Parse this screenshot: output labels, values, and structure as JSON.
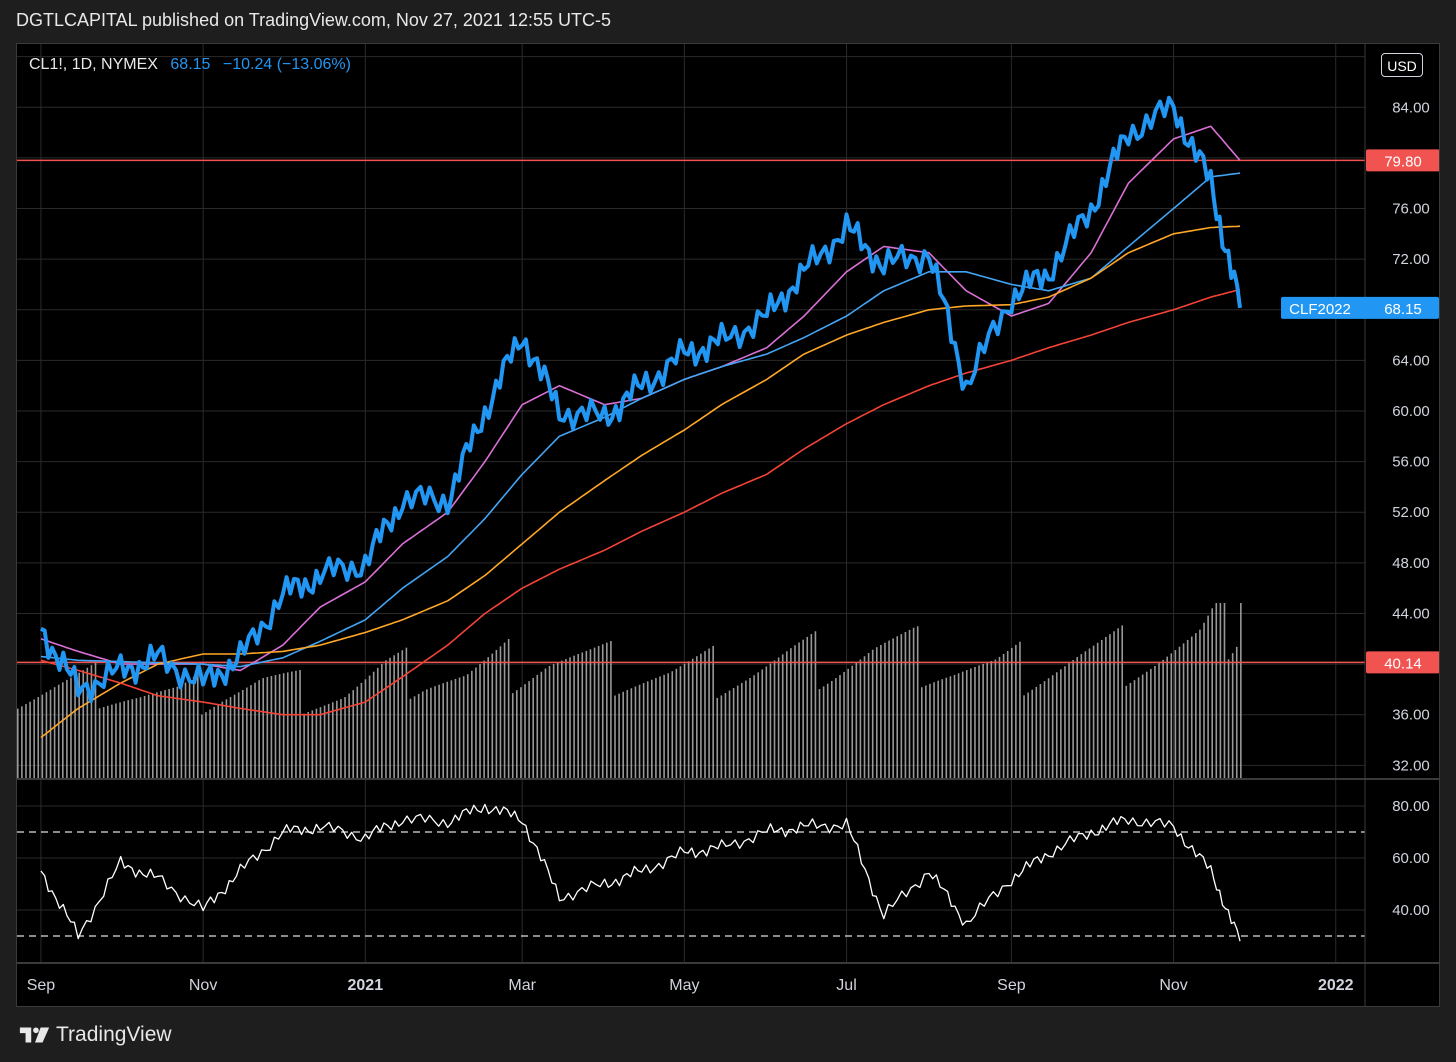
{
  "header": {
    "text": "DGTLCAPITAL published on TradingView.com, Nov 27, 2021 12:55 UTC-5"
  },
  "legend": {
    "symbol": "CL1!, 1D, NYMEX",
    "last": "68.15",
    "change": "−10.24 (−13.06%)"
  },
  "toolbar": {
    "currency_label": "USD"
  },
  "footer": {
    "brand": "TradingView",
    "logo_icon": "tradingview-logo-icon"
  },
  "colors": {
    "price": "#2196f3",
    "ma_fast": "#da70d6",
    "ma_mid": "#42a5f5",
    "ma_slow": "#ffa726",
    "ma_long": "#f44336",
    "hline": "#f05350",
    "volume": "#b3b3b3",
    "rsi": "#ffffff",
    "grid": "#2a2a2a",
    "axis_text": "#d1d4dc"
  },
  "chart_data": [
    {
      "type": "line",
      "name": "price-panel",
      "x_labels": [
        "Sep",
        "Nov",
        "2021",
        "Mar",
        "May",
        "Jul",
        "Sep",
        "Nov",
        "2022"
      ],
      "y_ticks": [
        32,
        36,
        40,
        44,
        48,
        52,
        56,
        60,
        64,
        68,
        72,
        76,
        80,
        84,
        88
      ],
      "y_tick_labels": [
        "32.00",
        "36.00",
        "",
        "44.00",
        "48.00",
        "52.00",
        "56.00",
        "60.00",
        "64.00",
        "",
        "72.00",
        "76.00",
        "",
        "84.00",
        ""
      ],
      "ylim": [
        31,
        89
      ],
      "x_dates": [
        "2020-09-01",
        "2020-09-15",
        "2020-10-01",
        "2020-10-15",
        "2020-11-01",
        "2020-11-15",
        "2020-12-01",
        "2020-12-15",
        "2021-01-01",
        "2021-01-15",
        "2021-02-01",
        "2021-02-15",
        "2021-03-01",
        "2021-03-15",
        "2021-04-01",
        "2021-04-15",
        "2021-05-01",
        "2021-05-15",
        "2021-06-01",
        "2021-06-15",
        "2021-07-01",
        "2021-07-15",
        "2021-08-01",
        "2021-08-15",
        "2021-09-01",
        "2021-09-15",
        "2021-10-01",
        "2021-10-15",
        "2021-11-01",
        "2021-11-15",
        "2021-11-26"
      ],
      "series": [
        {
          "role": "price",
          "values": [
            42.8,
            38.0,
            39.5,
            40.5,
            38.5,
            40.5,
            45.5,
            47.0,
            48.0,
            53.0,
            53.0,
            60.0,
            66.0,
            60.0,
            59.5,
            62.0,
            64.5,
            65.5,
            67.5,
            71.0,
            74.5,
            71.5,
            72.5,
            62.0,
            69.0,
            71.0,
            76.0,
            82.0,
            84.0,
            78.0,
            68.15
          ]
        },
        {
          "role": "ma_fast",
          "values": [
            42.0,
            41.0,
            40.0,
            40.0,
            40.0,
            39.5,
            41.5,
            44.5,
            46.5,
            49.5,
            52.0,
            56.0,
            60.5,
            62.0,
            60.5,
            61.0,
            62.5,
            63.5,
            65.0,
            67.5,
            71.0,
            73.0,
            72.5,
            69.5,
            67.5,
            68.5,
            72.5,
            78.0,
            81.5,
            82.5,
            79.8
          ]
        },
        {
          "role": "ma_mid",
          "values": [
            40.6,
            40.3,
            40.2,
            40.1,
            40.0,
            39.8,
            40.5,
            41.8,
            43.5,
            46.0,
            48.5,
            51.5,
            55.0,
            58.0,
            59.5,
            61.0,
            62.5,
            63.5,
            64.5,
            65.8,
            67.5,
            69.5,
            71.0,
            71.0,
            70.0,
            69.5,
            70.5,
            73.0,
            76.0,
            78.5,
            78.8
          ]
        },
        {
          "role": "ma_slow",
          "values": [
            34.2,
            36.5,
            38.5,
            40.0,
            40.8,
            40.8,
            41.0,
            41.5,
            42.5,
            43.5,
            45.0,
            47.0,
            49.5,
            52.0,
            54.5,
            56.5,
            58.5,
            60.5,
            62.5,
            64.5,
            66.0,
            67.0,
            68.0,
            68.3,
            68.4,
            69.0,
            70.5,
            72.5,
            74.0,
            74.5,
            74.6
          ]
        },
        {
          "role": "ma_long",
          "values": [
            40.3,
            39.5,
            38.5,
            37.5,
            37.0,
            36.5,
            36.0,
            36.0,
            37.0,
            39.0,
            41.5,
            44.0,
            46.0,
            47.5,
            49.0,
            50.5,
            52.0,
            53.5,
            55.0,
            57.0,
            59.0,
            60.5,
            62.0,
            63.0,
            64.0,
            65.0,
            66.0,
            67.0,
            68.0,
            69.0,
            69.6
          ]
        }
      ],
      "hlines": [
        {
          "value": 79.8,
          "label": "79.80"
        },
        {
          "value": 40.14,
          "label": "40.14"
        }
      ],
      "last_price_label": {
        "symbol": "CLF2022",
        "value": "68.15"
      }
    },
    {
      "type": "bar",
      "name": "volume",
      "note": "relative volume, unitless, overlaid on price panel bottom",
      "values": [
        0.48,
        0.52,
        0.55,
        0.5,
        0.47,
        0.53,
        0.56,
        0.51,
        0.5,
        0.6,
        0.62,
        0.58,
        0.65,
        0.7,
        0.66,
        0.63,
        0.6,
        0.62,
        0.64,
        0.68,
        0.7,
        0.74,
        0.72,
        0.66,
        0.62,
        0.66,
        0.7,
        0.72,
        0.74,
        0.78,
        1.0
      ],
      "ylim": [
        0,
        1
      ]
    },
    {
      "type": "line",
      "name": "rsi",
      "y_ticks": [
        40,
        60,
        80
      ],
      "y_tick_labels": [
        "40.00",
        "60.00",
        "80.00"
      ],
      "ylim": [
        20,
        90
      ],
      "bands": [
        30,
        70
      ],
      "values": [
        55,
        30,
        58,
        52,
        40,
        55,
        70,
        72,
        68,
        75,
        74,
        80,
        75,
        45,
        50,
        55,
        62,
        64,
        70,
        72,
        73,
        38,
        55,
        35,
        52,
        62,
        70,
        75,
        72,
        55,
        28
      ]
    }
  ]
}
